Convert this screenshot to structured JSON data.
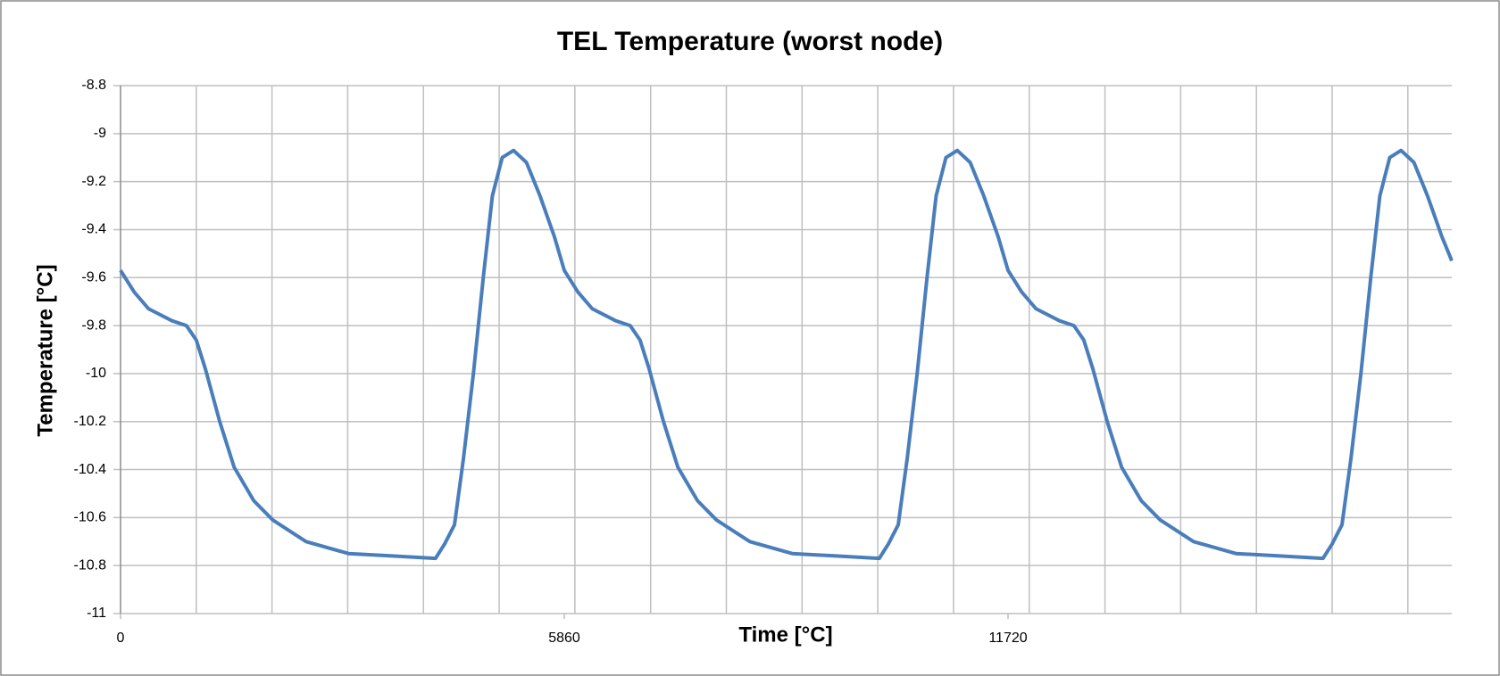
{
  "chart_data": {
    "type": "line",
    "title": "TEL Temperature (worst node)",
    "x_label": "Time [°C]",
    "y_label": "Temperature [°C]",
    "xlim": [
      0,
      17580
    ],
    "xticks": [
      0,
      5860,
      11720
    ],
    "xgrid": [
      1000,
      2000,
      3000,
      4000,
      5000,
      6000,
      7000,
      8000,
      9000,
      10000,
      11000,
      12000,
      13000,
      14000,
      15000,
      16000,
      17000
    ],
    "ylim": [
      -11,
      -8.8
    ],
    "yticks": [
      -8.8,
      -9,
      {
        "value": -9.2,
        "label": "-9.2"
      },
      -9.4,
      -9.6,
      -9.8,
      -10,
      -10.2,
      -10.4,
      -10.6,
      -10.8,
      -11
    ],
    "grid": true,
    "x": [
      0,
      180,
      370,
      680,
      870,
      1000,
      1120,
      1310,
      1500,
      1760,
      2010,
      2450,
      3010,
      3590,
      4160,
      4280,
      4410,
      4530,
      4660,
      4790,
      4910,
      5040,
      5190,
      5360,
      5540,
      5730,
      5860,
      6040,
      6230,
      6540,
      6730,
      6860,
      6980,
      7170,
      7360,
      7620,
      7870,
      8310,
      8870,
      9450,
      10020,
      10140,
      10270,
      10390,
      10520,
      10650,
      10770,
      10900,
      11050,
      11220,
      11400,
      11590,
      11720,
      11900,
      12090,
      12400,
      12590,
      12720,
      12840,
      13030,
      13220,
      13480,
      13730,
      14170,
      14730,
      15310,
      15880,
      16000,
      16130,
      16250,
      16380,
      16510,
      16630,
      16760,
      16910,
      17080,
      17260,
      17450,
      17580
    ],
    "series": [
      {
        "name": "TEL Temperature",
        "color": "#4a7ebb",
        "values": [
          -9.57,
          -9.66,
          -9.73,
          -9.78,
          -9.8,
          -9.86,
          -9.98,
          -10.2,
          -10.39,
          -10.53,
          -10.61,
          -10.7,
          -10.75,
          -10.76,
          -10.77,
          -10.71,
          -10.63,
          -10.35,
          -10,
          -9.6,
          -9.26,
          -9.1,
          -9.07,
          -9.12,
          -9.26,
          -9.43,
          -9.57,
          -9.66,
          -9.73,
          -9.78,
          -9.8,
          -9.86,
          -9.98,
          -10.2,
          -10.39,
          -10.53,
          -10.61,
          -10.7,
          -10.75,
          -10.76,
          -10.77,
          -10.71,
          -10.63,
          -10.35,
          -10,
          -9.6,
          -9.26,
          -9.1,
          -9.07,
          -9.12,
          -9.26,
          -9.43,
          -9.57,
          -9.66,
          -9.73,
          -9.78,
          -9.8,
          -9.86,
          -9.98,
          -10.2,
          -10.39,
          -10.53,
          -10.61,
          -10.7,
          -10.75,
          -10.76,
          -10.77,
          -10.71,
          -10.63,
          -10.35,
          -10,
          -9.6,
          -9.26,
          -9.1,
          -9.07,
          -9.12,
          -9.26,
          -9.43,
          -9.53
        ]
      }
    ]
  }
}
